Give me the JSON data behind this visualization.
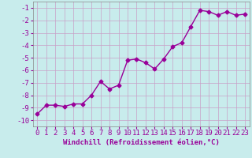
{
  "x": [
    0,
    1,
    2,
    3,
    4,
    5,
    6,
    7,
    8,
    9,
    10,
    11,
    12,
    13,
    14,
    15,
    16,
    17,
    18,
    19,
    20,
    21,
    22,
    23
  ],
  "y": [
    -9.5,
    -8.8,
    -8.8,
    -8.9,
    -8.7,
    -8.7,
    -8.0,
    -6.9,
    -7.5,
    -7.2,
    -5.2,
    -5.1,
    -5.4,
    -5.9,
    -5.1,
    -4.1,
    -3.8,
    -2.5,
    -1.2,
    -1.3,
    -1.6,
    -1.3,
    -1.6,
    -1.5
  ],
  "line_color": "#990099",
  "marker": "D",
  "marker_size": 2.5,
  "linewidth": 1.0,
  "bg_color": "#c8ecec",
  "grid_color": "#b0d0d0",
  "xlabel": "Windchill (Refroidissement éolien,°C)",
  "ylabel": "",
  "xlim": [
    -0.5,
    23.5
  ],
  "ylim": [
    -10.5,
    -0.5
  ],
  "yticks": [
    -10,
    -9,
    -8,
    -7,
    -6,
    -5,
    -4,
    -3,
    -2,
    -1
  ],
  "xticks": [
    0,
    1,
    2,
    3,
    4,
    5,
    6,
    7,
    8,
    9,
    10,
    11,
    12,
    13,
    14,
    15,
    16,
    17,
    18,
    19,
    20,
    21,
    22,
    23
  ],
  "xlabel_fontsize": 6.5,
  "tick_fontsize": 6.5,
  "tick_color": "#990099",
  "label_color": "#990099"
}
